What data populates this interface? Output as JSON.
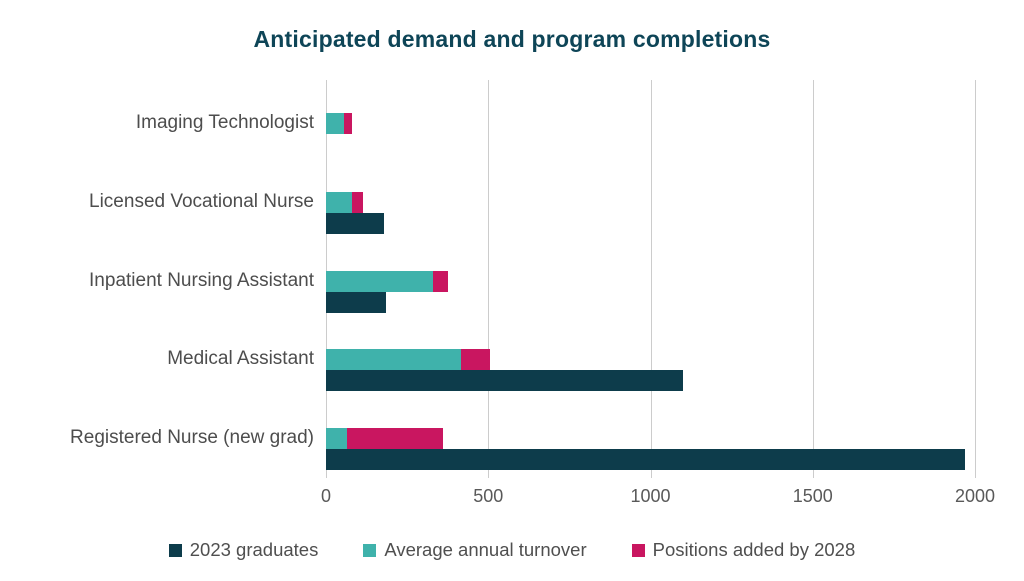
{
  "title": "Anticipated demand and program completions",
  "colors": {
    "title_text": "#0e4557",
    "category_text": "#4d4d4d",
    "axis_text": "#595959",
    "gridline": "#cccccc",
    "background": "#ffffff",
    "graduates": "#0d3c4b",
    "turnover": "#3fb2ab",
    "positions": "#c91660"
  },
  "chart_data": {
    "type": "bar",
    "orientation": "horizontal",
    "title": "Anticipated demand and program completions",
    "categories": [
      "Imaging Technologist",
      "Licensed Vocational Nurse",
      "Inpatient Nursing Assistant",
      "Medical Assistant",
      "Registered Nurse (new grad)"
    ],
    "series": [
      {
        "name": "2023 graduates",
        "color": "#0d3c4b",
        "values": [
          0,
          180,
          185,
          1100,
          1970
        ]
      },
      {
        "name": "Average annual turnover",
        "color": "#3fb2ab",
        "values": [
          55,
          80,
          330,
          415,
          65
        ]
      },
      {
        "name": "Positions added by 2028",
        "color": "#c91660",
        "values": [
          25,
          35,
          45,
          90,
          295
        ]
      }
    ],
    "structure_note": "Each category shows two bars: a stacked bar (average annual turnover + positions added by 2028) on top, and a 2023 graduates bar directly beneath it.",
    "xlabel": "",
    "ylabel": "",
    "xlim": [
      0,
      2000
    ],
    "xticks": [
      0,
      500,
      1000,
      1500,
      2000
    ],
    "grid": "vertical gridlines on",
    "legend_position": "bottom"
  }
}
